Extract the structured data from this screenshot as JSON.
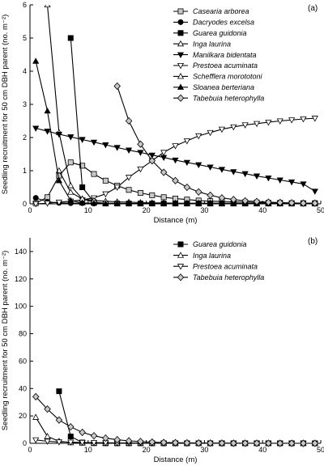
{
  "chart_data": [
    {
      "type": "line",
      "panel_label": "(a)",
      "xlabel": "Distance (m)",
      "ylabel": "Seedling recruitment for 50 cm DBH parent (no. m⁻²)",
      "xlim": [
        0,
        50
      ],
      "ylim": [
        0,
        6
      ],
      "x_ticks": [
        0,
        10,
        20,
        30,
        40,
        50
      ],
      "y_ticks": [
        0,
        1,
        2,
        3,
        4,
        5,
        6
      ],
      "grid": false,
      "legend": "top-right",
      "series": [
        {
          "name": "Casearia arborea",
          "marker": "square",
          "fill": "#c8c8c8",
          "x": [
            1,
            3,
            5,
            7,
            9,
            11,
            13,
            15,
            17,
            19,
            21,
            23,
            25,
            27,
            29,
            31,
            33,
            35,
            37,
            39,
            41,
            43,
            45,
            47,
            49
          ],
          "y": [
            0.02,
            0.2,
            0.85,
            1.25,
            1.15,
            0.9,
            0.7,
            0.55,
            0.42,
            0.33,
            0.26,
            0.2,
            0.16,
            0.13,
            0.1,
            0.08,
            0.07,
            0.06,
            0.05,
            0.04,
            0.03,
            0.03,
            0.02,
            0.02,
            0.02
          ]
        },
        {
          "name": "Dacryodes excelsa",
          "marker": "circle",
          "fill": "#000000",
          "x": [
            1,
            3,
            5,
            7,
            9,
            11,
            13,
            15,
            17,
            19,
            21,
            23,
            25,
            27,
            29,
            31,
            33,
            35,
            37,
            39,
            41,
            43,
            45,
            47,
            49
          ],
          "y": [
            0.18,
            0.06,
            0.03,
            0.02,
            0.02,
            0.01,
            0.01,
            0.01,
            0.01,
            0.01,
            0.01,
            0.01,
            0.01,
            0.01,
            0.01,
            0.01,
            0.01,
            0.01,
            0.01,
            0.01,
            0.01,
            0.01,
            0.01,
            0.01,
            0.01
          ]
        },
        {
          "name": "Guarea guidonia",
          "marker": "square",
          "fill": "#000000",
          "x": [
            7,
            9,
            11,
            13,
            15,
            17,
            19,
            21,
            23,
            25,
            27,
            29,
            31,
            33,
            35,
            37,
            39,
            41,
            43,
            45,
            47,
            49
          ],
          "y": [
            5.0,
            0.5,
            0.05,
            0.01,
            0.01,
            0.01,
            0.01,
            0.01,
            0.01,
            0.01,
            0.01,
            0.01,
            0.01,
            0.01,
            0.01,
            0.01,
            0.01,
            0.01,
            0.01,
            0.01,
            0.01,
            0.01
          ]
        },
        {
          "name": "Inga laurina",
          "marker": "triangle-up",
          "fill": "#ffffff",
          "x": [
            3,
            5,
            7,
            9,
            11,
            13,
            15,
            17,
            19,
            21,
            23,
            25,
            27,
            29,
            31,
            33,
            35,
            37,
            39,
            41,
            43,
            45,
            47,
            49
          ],
          "y": [
            6.0,
            2.15,
            0.55,
            0.15,
            0.05,
            0.02,
            0.02,
            0.01,
            0.01,
            0.01,
            0.01,
            0.01,
            0.01,
            0.01,
            0.01,
            0.01,
            0.01,
            0.01,
            0.01,
            0.01,
            0.01,
            0.01,
            0.01,
            0.01
          ]
        },
        {
          "name": "Manilkara bidentata",
          "marker": "triangle-down",
          "fill": "#000000",
          "x": [
            1,
            3,
            5,
            7,
            9,
            11,
            13,
            15,
            17,
            19,
            21,
            23,
            25,
            27,
            29,
            31,
            33,
            35,
            37,
            39,
            41,
            43,
            45,
            47,
            49
          ],
          "y": [
            2.28,
            2.19,
            2.1,
            2.02,
            1.94,
            1.86,
            1.78,
            1.7,
            1.62,
            1.55,
            1.47,
            1.4,
            1.32,
            1.25,
            1.18,
            1.11,
            1.04,
            0.97,
            0.91,
            0.84,
            0.78,
            0.72,
            0.66,
            0.6,
            0.38
          ]
        },
        {
          "name": "Prestoea acuminata",
          "marker": "triangle-down",
          "fill": "#ffffff",
          "x": [
            1,
            3,
            5,
            7,
            9,
            11,
            13,
            15,
            17,
            19,
            21,
            23,
            25,
            27,
            29,
            31,
            33,
            35,
            37,
            39,
            41,
            43,
            45,
            47,
            49
          ],
          "y": [
            0.0,
            0.02,
            0.05,
            0.08,
            0.12,
            0.18,
            0.3,
            0.5,
            0.8,
            1.05,
            1.3,
            1.55,
            1.75,
            1.9,
            2.05,
            2.15,
            2.25,
            2.32,
            2.38,
            2.42,
            2.46,
            2.5,
            2.53,
            2.56,
            2.58
          ]
        },
        {
          "name": "Schefflera morototoni",
          "marker": "triangle-up",
          "fill": "#ffffff",
          "x": [
            5,
            7,
            9,
            11,
            13,
            15,
            17,
            19,
            21,
            23,
            25,
            27,
            29,
            31,
            33,
            35,
            37,
            39,
            41,
            43,
            45,
            47,
            49
          ],
          "y": [
            1.0,
            0.35,
            0.15,
            0.1,
            0.08,
            0.06,
            0.05,
            0.04,
            0.03,
            0.03,
            0.02,
            0.02,
            0.02,
            0.02,
            0.02,
            0.02,
            0.01,
            0.01,
            0.01,
            0.01,
            0.01,
            0.01,
            0.01
          ]
        },
        {
          "name": "Sloanea berteriana",
          "marker": "triangle-up",
          "fill": "#000000",
          "x": [
            1,
            3,
            5,
            7,
            9,
            11,
            13,
            15,
            17,
            19,
            21,
            23,
            25,
            27,
            29,
            31,
            33,
            35,
            37,
            39,
            41,
            43,
            45,
            47,
            49
          ],
          "y": [
            4.3,
            2.8,
            0.7,
            0.1,
            0.03,
            0.02,
            0.01,
            0.01,
            0.01,
            0.01,
            0.01,
            0.01,
            0.01,
            0.01,
            0.01,
            0.01,
            0.01,
            0.01,
            0.01,
            0.01,
            0.01,
            0.01,
            0.01,
            0.01,
            0.01
          ]
        },
        {
          "name": "Tabebuia heterophylla",
          "marker": "diamond",
          "fill": "#c8c8c8",
          "x": [
            15,
            17,
            19,
            21,
            23,
            25,
            27,
            29,
            31,
            33,
            35,
            37,
            39,
            41,
            43,
            45,
            47,
            49
          ],
          "y": [
            3.55,
            2.5,
            1.8,
            1.3,
            0.95,
            0.7,
            0.5,
            0.36,
            0.26,
            0.18,
            0.13,
            0.09,
            0.07,
            0.05,
            0.04,
            0.03,
            0.02,
            0.02
          ]
        }
      ]
    },
    {
      "type": "line",
      "panel_label": "(b)",
      "xlabel": "Distance (m)",
      "ylabel": "Seedling recruitment for 50 cm DBH parent (no. m⁻²)",
      "xlim": [
        0,
        50
      ],
      "ylim": [
        0,
        150
      ],
      "x_ticks": [
        0,
        10,
        20,
        30,
        40,
        50
      ],
      "y_ticks": [
        0,
        20,
        40,
        60,
        80,
        100,
        120,
        140
      ],
      "grid": false,
      "legend": "top-right",
      "series": [
        {
          "name": "Guarea guidonia",
          "marker": "square",
          "fill": "#000000",
          "x": [
            5,
            7,
            9,
            11,
            13,
            15,
            17,
            19,
            21,
            23,
            25,
            27,
            29,
            31,
            33,
            35,
            37,
            39,
            41,
            43,
            45,
            47,
            49
          ],
          "y": [
            38,
            5,
            0.6,
            0.1,
            0.05,
            0.02,
            0.02,
            0.01,
            0.01,
            0.01,
            0.01,
            0.01,
            0.01,
            0.01,
            0.01,
            0.01,
            0.01,
            0.01,
            0.01,
            0.01,
            0.01,
            0.01,
            0.01
          ]
        },
        {
          "name": "Inga laurina",
          "marker": "triangle-up",
          "fill": "#ffffff",
          "x": [
            1,
            3,
            5,
            7,
            9,
            11,
            13,
            15,
            17,
            19,
            21,
            23,
            25,
            27,
            29,
            31,
            33,
            35,
            37,
            39,
            41,
            43,
            45,
            47,
            49
          ],
          "y": [
            19,
            5,
            1.5,
            0.5,
            0.2,
            0.1,
            0.05,
            0.02,
            0.02,
            0.01,
            0.01,
            0.01,
            0.01,
            0.01,
            0.01,
            0.01,
            0.01,
            0.01,
            0.01,
            0.01,
            0.01,
            0.01,
            0.01,
            0.01,
            0.01
          ]
        },
        {
          "name": "Prestoea acuminata",
          "marker": "triangle-down",
          "fill": "#ffffff",
          "x": [
            1,
            3,
            5,
            7,
            9,
            11,
            13,
            15,
            17,
            19,
            21,
            23,
            25,
            27,
            29,
            31,
            33,
            35,
            37,
            39,
            41,
            43,
            45,
            47,
            49
          ],
          "y": [
            2.5,
            1.5,
            1.0,
            0.8,
            0.6,
            0.5,
            0.4,
            0.3,
            0.25,
            0.2,
            0.15,
            0.12,
            0.1,
            0.08,
            0.06,
            0.05,
            0.04,
            0.03,
            0.03,
            0.02,
            0.02,
            0.02,
            0.02,
            0.02,
            0.02
          ]
        },
        {
          "name": "Tabebuia heterophylla",
          "marker": "diamond",
          "fill": "#c8c8c8",
          "x": [
            1,
            3,
            5,
            7,
            9,
            11,
            13,
            15,
            17,
            19,
            21,
            23,
            25,
            27,
            29,
            31,
            33,
            35,
            37,
            39,
            41,
            43,
            45,
            47,
            49
          ],
          "y": [
            34,
            25,
            17,
            12,
            8,
            5.5,
            3.8,
            2.6,
            1.8,
            1.3,
            0.9,
            0.6,
            0.45,
            0.32,
            0.23,
            0.17,
            0.12,
            0.09,
            0.07,
            0.05,
            0.04,
            0.03,
            0.03,
            0.02,
            0.02
          ]
        }
      ]
    }
  ]
}
